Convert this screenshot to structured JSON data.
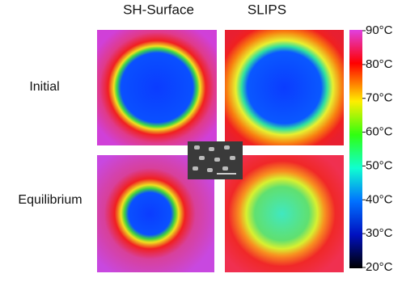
{
  "column_headers": [
    "SH-Surface",
    "SLIPS"
  ],
  "row_labels": [
    "Initial",
    "Equilibrium"
  ],
  "colorbar": {
    "labels": [
      "90°C",
      "80°C",
      "70°C",
      "60°C",
      "50°C",
      "40°C",
      "30°C",
      "20°C"
    ]
  }
}
